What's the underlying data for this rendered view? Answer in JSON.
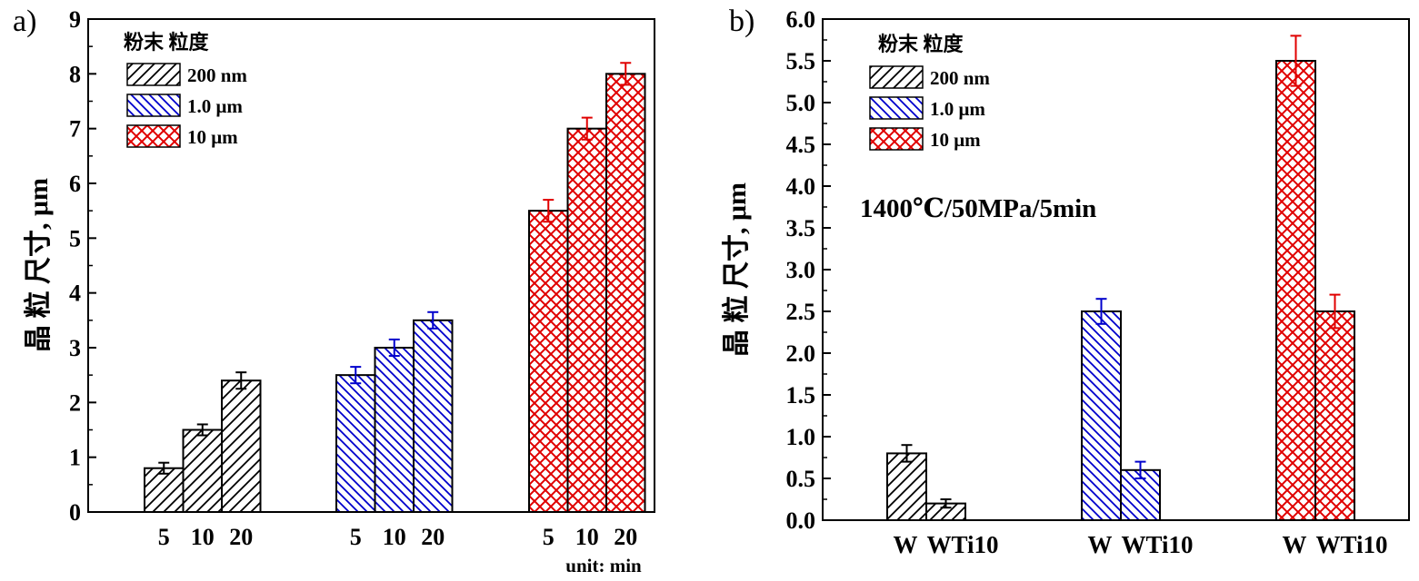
{
  "chart_data": [
    {
      "type": "bar",
      "panel_label": "a)",
      "ylabel": "晶 粒 尺寸,  μm",
      "ylim": [
        0,
        9
      ],
      "yticks": [
        "0",
        "1",
        "2",
        "3",
        "4",
        "5",
        "6",
        "7",
        "8",
        "9"
      ],
      "legend": {
        "title": "粉末 粒度",
        "entries": [
          "200 nm",
          "1.0 μm",
          "10 μm"
        ],
        "placement": "top-left"
      },
      "groups": [
        "200 nm",
        "1.0 μm",
        "10 μm"
      ],
      "categories": [
        "5",
        "10",
        "20"
      ],
      "x_unit_note": "unit: min",
      "series": [
        {
          "name": "200 nm",
          "color": "#000000",
          "pattern": "hatch-forward",
          "values": [
            0.8,
            1.5,
            2.4
          ],
          "errors": [
            0.1,
            0.1,
            0.15
          ]
        },
        {
          "name": "1.0 μm",
          "color": "#0000cc",
          "pattern": "hatch-backward",
          "values": [
            2.5,
            3.0,
            3.5
          ],
          "errors": [
            0.15,
            0.15,
            0.15
          ]
        },
        {
          "name": "10 μm",
          "color": "#e00000",
          "pattern": "crosshatch",
          "values": [
            5.5,
            7.0,
            8.0
          ],
          "errors": [
            0.2,
            0.2,
            0.2
          ]
        }
      ],
      "grid": false
    },
    {
      "type": "bar",
      "panel_label": "b)",
      "ylabel": "晶 粒 尺寸,  μm",
      "ylim": [
        0,
        6
      ],
      "yticks": [
        "0.0",
        "0.5",
        "1.0",
        "1.5",
        "2.0",
        "2.5",
        "3.0",
        "3.5",
        "4.0",
        "4.5",
        "5.0",
        "5.5",
        "6.0"
      ],
      "legend": {
        "title": "粉末 粒度",
        "entries": [
          "200 nm",
          "1.0 μm",
          "10 μm"
        ],
        "placement": "top-left"
      },
      "annotation": "1400℃/50MPa/5min",
      "categories": [
        "W",
        "WTi10"
      ],
      "series": [
        {
          "name": "200 nm",
          "color": "#000000",
          "pattern": "hatch-forward",
          "values": [
            0.8,
            0.2
          ],
          "errors": [
            0.1,
            0.05
          ]
        },
        {
          "name": "1.0 μm",
          "color": "#0000cc",
          "pattern": "hatch-backward",
          "values": [
            2.5,
            0.6
          ],
          "errors": [
            0.15,
            0.1
          ]
        },
        {
          "name": "10 μm",
          "color": "#e00000",
          "pattern": "crosshatch",
          "values": [
            5.5,
            2.5
          ],
          "errors": [
            0.3,
            0.2
          ]
        }
      ],
      "grid": false
    }
  ]
}
